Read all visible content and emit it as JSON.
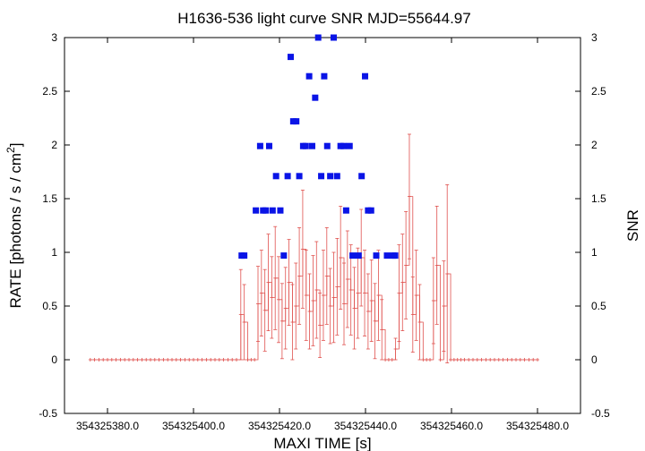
{
  "chart_data": {
    "type": "scatter",
    "title": "H1636-536 light curve  SNR MJD=55644.97",
    "xlabel": "MAXI TIME [s]",
    "ylabel": "RATE [photons / s / cm",
    "ylabel_sup": "2",
    "ylabel_close": "]",
    "y2label": "SNR",
    "xlim": [
      354325370.0,
      354325490.0
    ],
    "ylim": [
      -0.5,
      3
    ],
    "y2lim": [
      -0.5,
      3
    ],
    "x_ticks": [
      354325380.0,
      354325400.0,
      354325420.0,
      354325440.0,
      354325460.0,
      354325480.0
    ],
    "x_tick_labels": [
      "354325380.0",
      "354325400.0",
      "354325420.0",
      "354325440.0",
      "354325460.0",
      "354325480.0"
    ],
    "y_ticks": [
      -0.5,
      0,
      0.5,
      1,
      1.5,
      2,
      2.5,
      3
    ],
    "y_tick_labels": [
      "-0.5",
      "0",
      "0.5",
      "1",
      "1.5",
      "2",
      "2.5",
      "3"
    ],
    "grid": false,
    "series": [
      {
        "kind": "rate",
        "color": "#e0524f",
        "points": [
          [
            354325376.0,
            0,
            0
          ],
          [
            354325377.0,
            0,
            0
          ],
          [
            354325378.0,
            0,
            0
          ],
          [
            354325379.0,
            0,
            0
          ],
          [
            354325380.0,
            0,
            0
          ],
          [
            354325381.0,
            0,
            0
          ],
          [
            354325382.0,
            0,
            0
          ],
          [
            354325383.0,
            0,
            0
          ],
          [
            354325384.0,
            0,
            0
          ],
          [
            354325385.0,
            0,
            0
          ],
          [
            354325386.0,
            0,
            0
          ],
          [
            354325387.0,
            0,
            0
          ],
          [
            354325388.0,
            0,
            0
          ],
          [
            354325389.0,
            0,
            0
          ],
          [
            354325390.0,
            0,
            0
          ],
          [
            354325391.0,
            0,
            0
          ],
          [
            354325392.0,
            0,
            0
          ],
          [
            354325393.0,
            0,
            0
          ],
          [
            354325394.0,
            0,
            0
          ],
          [
            354325395.0,
            0,
            0
          ],
          [
            354325396.0,
            0,
            0
          ],
          [
            354325397.0,
            0,
            0
          ],
          [
            354325398.0,
            0,
            0
          ],
          [
            354325399.0,
            0,
            0
          ],
          [
            354325400.0,
            0,
            0
          ],
          [
            354325401.0,
            0,
            0
          ],
          [
            354325402.0,
            0,
            0
          ],
          [
            354325403.0,
            0,
            0
          ],
          [
            354325404.0,
            0,
            0
          ],
          [
            354325405.0,
            0,
            0
          ],
          [
            354325406.0,
            0,
            0
          ],
          [
            354325407.0,
            0,
            0
          ],
          [
            354325408.0,
            0,
            0
          ],
          [
            354325409.0,
            0,
            0
          ],
          [
            354325410.0,
            0,
            0
          ],
          [
            354325411.0,
            0.42,
            0.42
          ],
          [
            354325411.8,
            0.35,
            0.35
          ],
          [
            354325412.6,
            0.0,
            0.0
          ],
          [
            354325413.4,
            0.0,
            0.0
          ],
          [
            354325414.2,
            0.0,
            0.0
          ],
          [
            354325415.0,
            0.52,
            0.35
          ],
          [
            354325415.8,
            0.62,
            0.4
          ],
          [
            354325416.6,
            0.46,
            0.38
          ],
          [
            354325417.4,
            0.72,
            0.45
          ],
          [
            354325418.2,
            0.58,
            0.38
          ],
          [
            354325419.0,
            0.76,
            0.48
          ],
          [
            354325419.8,
            0.56,
            0.4
          ],
          [
            354325420.6,
            0.36,
            0.35
          ],
          [
            354325421.4,
            0.48,
            0.38
          ],
          [
            354325422.2,
            0.72,
            0.4
          ],
          [
            354325423.0,
            0.35,
            0.35
          ],
          [
            354325423.8,
            0.5,
            0.4
          ],
          [
            354325424.6,
            0.78,
            0.45
          ],
          [
            354325425.4,
            1.03,
            0.55
          ],
          [
            354325426.2,
            0.6,
            0.42
          ],
          [
            354325427.0,
            0.45,
            0.35
          ],
          [
            354325427.8,
            0.55,
            0.42
          ],
          [
            354325428.6,
            0.65,
            0.45
          ],
          [
            354325429.4,
            0.32,
            0.3
          ],
          [
            354325430.2,
            0.6,
            0.42
          ],
          [
            354325431.0,
            0.78,
            0.45
          ],
          [
            354325431.8,
            0.5,
            0.35
          ],
          [
            354325432.6,
            0.58,
            0.42
          ],
          [
            354325433.4,
            0.68,
            0.45
          ],
          [
            354325434.2,
            0.95,
            0.48
          ],
          [
            354325435.0,
            0.52,
            0.38
          ],
          [
            354325435.8,
            0.75,
            0.45
          ],
          [
            354325436.6,
            0.65,
            0.42
          ],
          [
            354325437.4,
            0.48,
            0.38
          ],
          [
            354325438.2,
            0.62,
            0.42
          ],
          [
            354325439.0,
            0.95,
            0.45
          ],
          [
            354325439.8,
            0.62,
            0.4
          ],
          [
            354325440.6,
            0.45,
            0.35
          ],
          [
            354325441.4,
            0.55,
            0.38
          ],
          [
            354325442.2,
            0.36,
            0.35
          ],
          [
            354325443.0,
            0.6,
            0.42
          ],
          [
            354325443.8,
            0.28,
            0.28
          ],
          [
            354325444.6,
            0.0,
            0.0
          ],
          [
            354325445.4,
            0.0,
            0.0
          ],
          [
            354325446.2,
            0.0,
            0.0
          ],
          [
            354325447.0,
            0.1,
            0.1
          ],
          [
            354325447.8,
            0.62,
            0.45
          ],
          [
            354325448.6,
            0.72,
            0.45
          ],
          [
            354325449.4,
            0.88,
            0.5
          ],
          [
            354325450.2,
            1.52,
            0.58
          ],
          [
            354325451.0,
            0.42,
            0.35
          ],
          [
            354325451.8,
            0.6,
            0.42
          ],
          [
            354325452.6,
            0.35,
            0.35
          ],
          [
            354325453.4,
            0.0,
            0.0
          ],
          [
            354325454.2,
            0.0,
            0.0
          ],
          [
            354325455.0,
            0.0,
            0.0
          ],
          [
            354325455.8,
            0.55,
            0.4
          ],
          [
            354325456.6,
            0.88,
            0.55
          ],
          [
            354325457.4,
            0.0,
            0.0
          ],
          [
            354325458.2,
            0.5,
            0.42
          ],
          [
            354325459.0,
            0.8,
            0.83
          ],
          [
            354325459.8,
            0.0,
            0.0
          ],
          [
            354325460.6,
            0.0,
            0.0
          ],
          [
            354325461.4,
            0,
            0
          ],
          [
            354325462.2,
            0,
            0
          ],
          [
            354325463.0,
            0,
            0
          ],
          [
            354325464.0,
            0,
            0
          ],
          [
            354325465.0,
            0,
            0
          ],
          [
            354325466.0,
            0,
            0
          ],
          [
            354325467.0,
            0,
            0
          ],
          [
            354325468.0,
            0,
            0
          ],
          [
            354325469.0,
            0,
            0
          ],
          [
            354325470.0,
            0,
            0
          ],
          [
            354325471.0,
            0,
            0
          ],
          [
            354325472.0,
            0,
            0
          ],
          [
            354325473.0,
            0,
            0
          ],
          [
            354325474.0,
            0,
            0
          ],
          [
            354325475.0,
            0,
            0
          ],
          [
            354325476.0,
            0,
            0
          ],
          [
            354325477.0,
            0,
            0
          ],
          [
            354325478.0,
            0,
            0
          ],
          [
            354325479.0,
            0,
            0
          ],
          [
            354325480.0,
            0,
            0
          ]
        ]
      },
      {
        "kind": "snr",
        "color": "#0a14e6",
        "points": [
          [
            354325411.2,
            0.97
          ],
          [
            354325411.8,
            0.97
          ],
          [
            354325414.5,
            1.39
          ],
          [
            354325415.5,
            1.99
          ],
          [
            354325416.2,
            1.39
          ],
          [
            354325416.8,
            1.39
          ],
          [
            354325417.6,
            1.99
          ],
          [
            354325418.4,
            1.39
          ],
          [
            354325419.2,
            1.71
          ],
          [
            354325420.2,
            1.39
          ],
          [
            354325421.0,
            0.97
          ],
          [
            354325421.9,
            1.71
          ],
          [
            354325422.6,
            2.82
          ],
          [
            354325423.2,
            2.22
          ],
          [
            354325423.9,
            2.22
          ],
          [
            354325424.6,
            1.71
          ],
          [
            354325425.5,
            1.99
          ],
          [
            354325426.1,
            1.99
          ],
          [
            354325426.9,
            2.64
          ],
          [
            354325427.6,
            1.99
          ],
          [
            354325428.3,
            2.44
          ],
          [
            354325429.0,
            3.0
          ],
          [
            354325429.7,
            1.71
          ],
          [
            354325430.4,
            2.64
          ],
          [
            354325431.1,
            1.99
          ],
          [
            354325431.8,
            1.71
          ],
          [
            354325432.6,
            3.0
          ],
          [
            354325433.4,
            1.71
          ],
          [
            354325434.2,
            1.99
          ],
          [
            354325434.9,
            1.99
          ],
          [
            354325435.5,
            1.39
          ],
          [
            354325436.3,
            1.99
          ],
          [
            354325437.0,
            0.97
          ],
          [
            354325438.4,
            0.97
          ],
          [
            354325439.1,
            1.71
          ],
          [
            354325439.9,
            2.64
          ],
          [
            354325440.6,
            1.39
          ],
          [
            354325441.3,
            1.39
          ],
          [
            354325442.5,
            0.97
          ],
          [
            354325445.0,
            0.97
          ],
          [
            354325446.4,
            0.97
          ],
          [
            354325446.9,
            0.97
          ]
        ]
      }
    ]
  }
}
